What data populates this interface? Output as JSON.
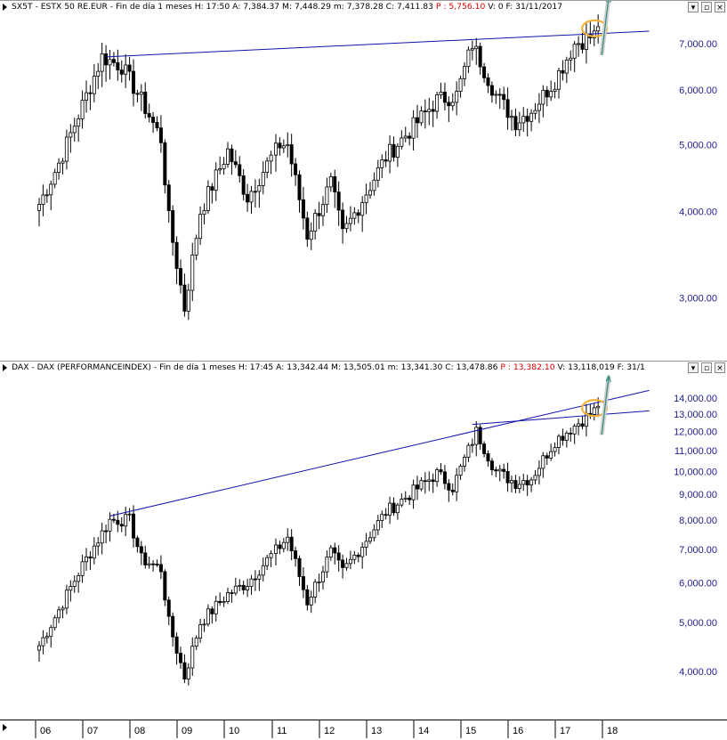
{
  "panes": [
    {
      "title_main": "SX5T - ESTX 50 RE.EUR - Fin de día 1 meses  H: 17:50  A: 7,384.37  M: 7,448.29  m: 7,378.28  C: 7,411.83",
      "title_red": "P : 5,756.10",
      "title_tail": "V: 0  F: 31/11/2017"
    },
    {
      "title_main": "DAX - DAX (PERFORMANCEINDEX) - Fin de día 1 meses  H: 17:45  A: 13,342.44  M: 13,505.01  m: 13,341.30  C: 13,478.86",
      "title_red": "P : 13,382.10",
      "title_tail": "V: 13,118,019  F: 31/1"
    }
  ],
  "window_buttons": {
    "menu": "▾",
    "restore": "▫",
    "close": "×"
  },
  "chart_data": [
    {
      "type": "candlestick",
      "symbol": "SX5T",
      "scale": "log",
      "ylim": [
        2500,
        7700
      ],
      "yticks": [
        "3,000.00",
        "4,000.00",
        "5,000.00",
        "6,000.00",
        "7,000.00"
      ],
      "ytick_values": [
        3000,
        4000,
        5000,
        6000,
        7000
      ],
      "x_ticks": [
        "06",
        "07",
        "08",
        "09",
        "10",
        "11",
        "12",
        "13",
        "14",
        "15",
        "16",
        "17",
        "18"
      ],
      "anchors": [
        [
          "2006-01",
          4100
        ],
        [
          "2006-06",
          4700
        ],
        [
          "2007-05",
          6700
        ],
        [
          "2007-10",
          6500
        ],
        [
          "2008-03",
          5800
        ],
        [
          "2008-08",
          5100
        ],
        [
          "2008-10",
          3900
        ],
        [
          "2009-02",
          2900
        ],
        [
          "2009-06",
          4000
        ],
        [
          "2010-01",
          4900
        ],
        [
          "2010-06",
          4200
        ],
        [
          "2011-02",
          5000
        ],
        [
          "2011-04",
          5000
        ],
        [
          "2011-09",
          3700
        ],
        [
          "2012-03",
          4400
        ],
        [
          "2012-06",
          3700
        ],
        [
          "2013-05",
          4800
        ],
        [
          "2014-06",
          5800
        ],
        [
          "2014-11",
          5900
        ],
        [
          "2015-03",
          7000
        ],
        [
          "2015-09",
          5900
        ],
        [
          "2016-02",
          5400
        ],
        [
          "2016-06",
          5600
        ],
        [
          "2016-12",
          6200
        ],
        [
          "2017-05",
          7000
        ],
        [
          "2017-10",
          7200
        ],
        [
          "2017-11",
          7411
        ]
      ],
      "trendlines": [
        {
          "from": [
            "2007-06",
            6700
          ],
          "to": [
            "2018-12",
            7300
          ]
        }
      ]
    },
    {
      "type": "candlestick",
      "symbol": "DAX",
      "scale": "log",
      "ylim": [
        3300,
        15500
      ],
      "yticks": [
        "4,000.00",
        "5,000.00",
        "6,000.00",
        "7,000.00",
        "8,000.00",
        "9,000.00",
        "10,000.00",
        "11,000.00",
        "12,000.00",
        "13,000.00",
        "14,000.00"
      ],
      "ytick_values": [
        4000,
        5000,
        6000,
        7000,
        8000,
        9000,
        10000,
        11000,
        12000,
        13000,
        14000
      ],
      "x_ticks": [
        "06",
        "07",
        "08",
        "09",
        "10",
        "11",
        "12",
        "13",
        "14",
        "15",
        "16",
        "17",
        "18"
      ],
      "anchors": [
        [
          "2006-01",
          4500
        ],
        [
          "2006-06",
          5300
        ],
        [
          "2006-12",
          6500
        ],
        [
          "2007-07",
          8000
        ],
        [
          "2007-12",
          8000
        ],
        [
          "2008-03",
          6700
        ],
        [
          "2008-08",
          6400
        ],
        [
          "2008-10",
          5000
        ],
        [
          "2009-02",
          3900
        ],
        [
          "2009-06",
          5000
        ],
        [
          "2010-01",
          5700
        ],
        [
          "2010-06",
          6000
        ],
        [
          "2011-04",
          7400
        ],
        [
          "2011-09",
          5500
        ],
        [
          "2012-03",
          6900
        ],
        [
          "2012-06",
          6300
        ],
        [
          "2013-05",
          8300
        ],
        [
          "2014-06",
          9900
        ],
        [
          "2014-10",
          9300
        ],
        [
          "2015-04",
          12000
        ],
        [
          "2015-09",
          10000
        ],
        [
          "2016-02",
          9500
        ],
        [
          "2016-06",
          9700
        ],
        [
          "2016-12",
          11500
        ],
        [
          "2017-06",
          12500
        ],
        [
          "2017-10",
          13200
        ],
        [
          "2017-11",
          13478
        ]
      ],
      "trendlines": [
        {
          "from": [
            "2007-07",
            8150
          ],
          "to": [
            "2018-12",
            14500
          ]
        },
        {
          "from": [
            "2015-03",
            12400
          ],
          "to": [
            "2018-12",
            13200
          ]
        }
      ]
    }
  ],
  "highlight_color": "#f2b33d",
  "line_color": "#1111aa",
  "arrow_color": "#2e8c7a"
}
